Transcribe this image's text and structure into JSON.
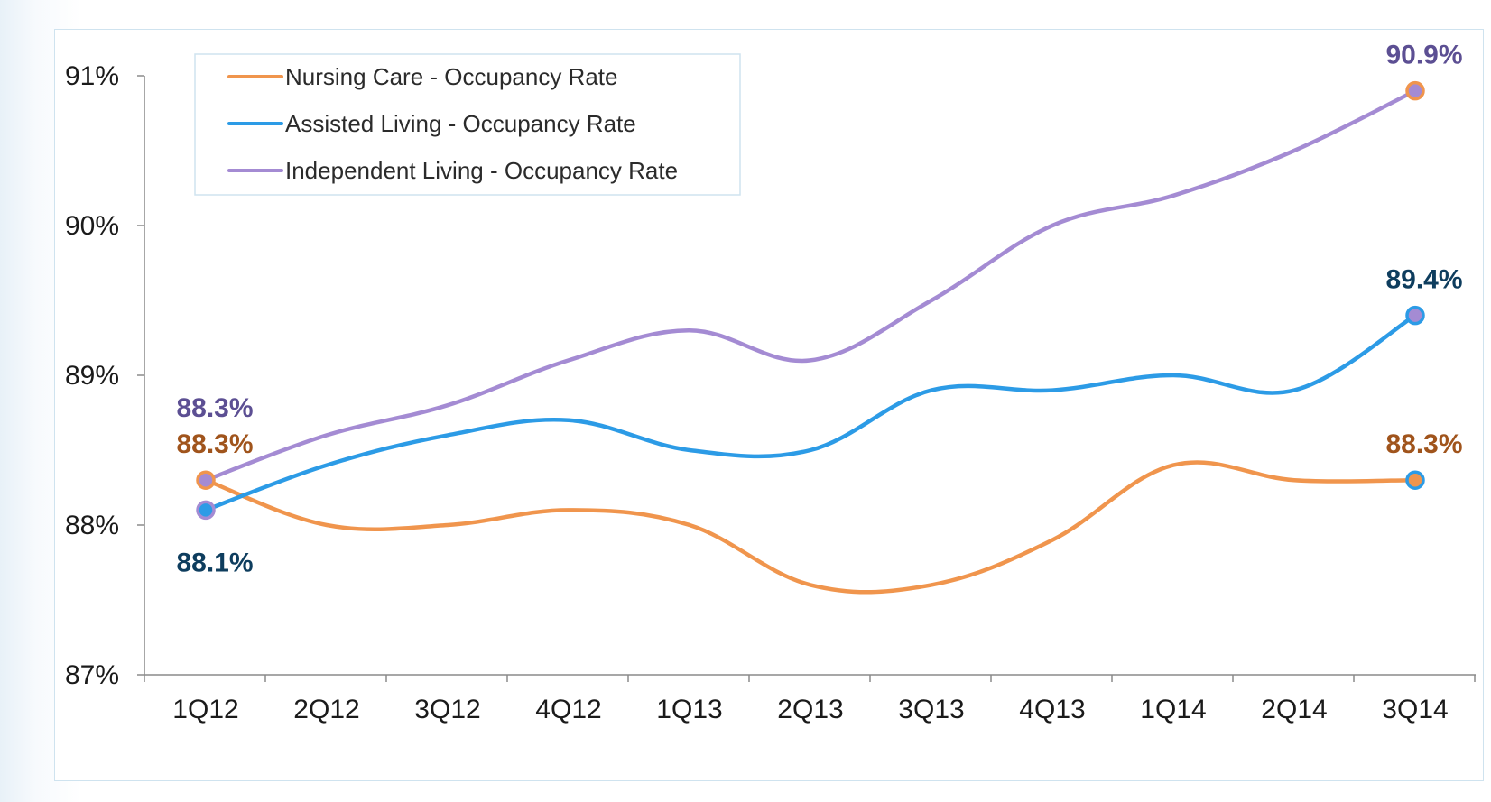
{
  "chart_data": {
    "type": "line",
    "categories": [
      "1Q12",
      "2Q12",
      "3Q12",
      "4Q12",
      "1Q13",
      "2Q13",
      "3Q13",
      "4Q13",
      "1Q14",
      "2Q14",
      "3Q14"
    ],
    "ylim": [
      87,
      91
    ],
    "y_ticks": [
      87,
      88,
      89,
      90,
      91
    ],
    "y_tick_labels": [
      "87%",
      "88%",
      "89%",
      "90%",
      "91%"
    ],
    "grid": false,
    "legend_position": "top-left",
    "series": [
      {
        "name": "Nursing Care - Occupancy Rate",
        "color": "#f0954d",
        "values": [
          88.3,
          88.0,
          88.0,
          88.1,
          88.0,
          87.6,
          87.6,
          87.9,
          88.4,
          88.3,
          88.3
        ]
      },
      {
        "name": "Assisted Living - Occupancy Rate",
        "color": "#2c9be6",
        "values": [
          88.1,
          88.4,
          88.6,
          88.7,
          88.5,
          88.5,
          88.9,
          88.9,
          89.0,
          88.9,
          89.4
        ]
      },
      {
        "name": "Independent Living - Occupancy Rate",
        "color": "#a48bd3",
        "values": [
          88.3,
          88.6,
          88.8,
          89.1,
          89.3,
          89.1,
          89.5,
          90.0,
          90.2,
          90.5,
          90.9
        ]
      }
    ],
    "data_labels": [
      {
        "text": "88.3%",
        "series": 2,
        "index": 0,
        "value": 88.3,
        "color": "#5c4f93",
        "placement": "above-2"
      },
      {
        "text": "88.3%",
        "series": 0,
        "index": 0,
        "value": 88.3,
        "color": "#a0541c",
        "placement": "above-1"
      },
      {
        "text": "88.1%",
        "series": 1,
        "index": 0,
        "value": 88.1,
        "color": "#0e3d5e",
        "placement": "below"
      },
      {
        "text": "90.9%",
        "series": 2,
        "index": 10,
        "value": 90.9,
        "color": "#5c4f93",
        "placement": "above-1"
      },
      {
        "text": "89.4%",
        "series": 1,
        "index": 10,
        "value": 89.4,
        "color": "#0e3d5e",
        "placement": "above-1"
      },
      {
        "text": "88.3%",
        "series": 0,
        "index": 10,
        "value": 88.3,
        "color": "#a0541c",
        "placement": "above-1"
      }
    ],
    "end_markers": [
      {
        "series": 0,
        "index": 0,
        "fill": "#a48bd3",
        "ring": "#f0954d"
      },
      {
        "series": 1,
        "index": 0,
        "fill": "#2c9be6",
        "ring": "#a48bd3"
      },
      {
        "series": 2,
        "index": 10,
        "fill": "#a48bd3",
        "ring": "#f0954d"
      },
      {
        "series": 1,
        "index": 10,
        "fill": "#a48bd3",
        "ring": "#2c9be6"
      },
      {
        "series": 0,
        "index": 10,
        "fill": "#f0954d",
        "ring": "#2c9be6"
      }
    ]
  }
}
